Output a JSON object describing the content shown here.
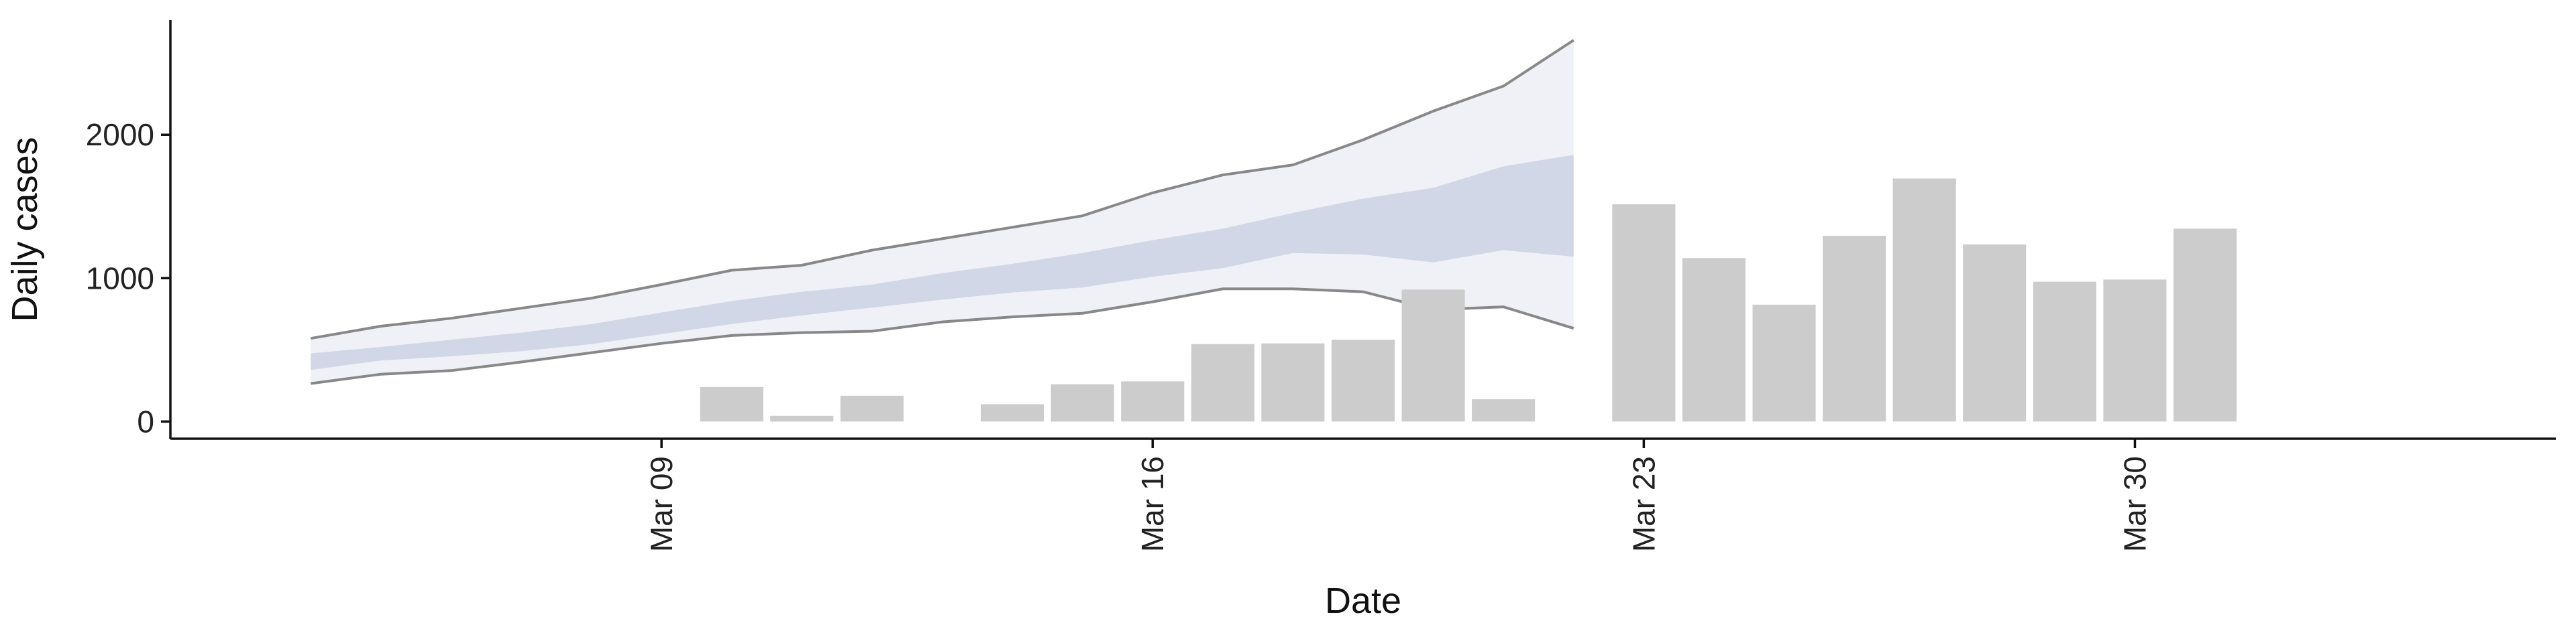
{
  "chart_data": {
    "type": "bar",
    "xlabel": "Date",
    "ylabel": "Daily cases",
    "xlim": [
      "2020-03-02",
      "2020-04-05"
    ],
    "ylim": [
      -120,
      2800
    ],
    "y_ticks": [
      0,
      1000,
      2000
    ],
    "x_ticks": [
      {
        "date": "2020-03-09",
        "label": "Mar 09"
      },
      {
        "date": "2020-03-16",
        "label": "Mar 16"
      },
      {
        "date": "2020-03-23",
        "label": "Mar 23"
      },
      {
        "date": "2020-03-30",
        "label": "Mar 30"
      }
    ],
    "grid": false,
    "legend": "none",
    "colors": {
      "bar": "#cccccc",
      "band_inner": "#c7cde0",
      "band_outer": "#eceef5",
      "band_outline": "#888888",
      "axis": "#111111"
    },
    "cases": {
      "name": "",
      "dates": [
        "2020-03-10",
        "2020-03-11",
        "2020-03-12",
        "2020-03-14",
        "2020-03-15",
        "2020-03-16",
        "2020-03-17",
        "2020-03-18",
        "2020-03-19",
        "2020-03-20",
        "2020-03-21",
        "2020-03-23",
        "2020-03-24",
        "2020-03-25",
        "2020-03-26",
        "2020-03-27",
        "2020-03-28",
        "2020-03-29",
        "2020-03-30",
        "2020-03-31"
      ],
      "values": [
        240,
        40,
        180,
        120,
        260,
        280,
        540,
        545,
        570,
        920,
        155,
        1515,
        1140,
        815,
        1295,
        1695,
        1235,
        975,
        990,
        1345
      ]
    },
    "estimate": {
      "name": "",
      "dates": [
        "2020-03-04",
        "2020-03-05",
        "2020-03-06",
        "2020-03-07",
        "2020-03-08",
        "2020-03-09",
        "2020-03-10",
        "2020-03-11",
        "2020-03-12",
        "2020-03-13",
        "2020-03-14",
        "2020-03-15",
        "2020-03-16",
        "2020-03-17",
        "2020-03-18",
        "2020-03-19",
        "2020-03-20",
        "2020-03-21",
        "2020-03-22"
      ],
      "lower90": [
        265,
        330,
        355,
        415,
        480,
        545,
        600,
        620,
        630,
        695,
        730,
        755,
        835,
        925,
        925,
        905,
        780,
        800,
        650
      ],
      "lower50": [
        360,
        425,
        455,
        490,
        540,
        610,
        680,
        740,
        795,
        850,
        900,
        935,
        1010,
        1070,
        1175,
        1165,
        1110,
        1195,
        1150
      ],
      "upper50": [
        475,
        520,
        570,
        620,
        680,
        760,
        840,
        905,
        955,
        1035,
        1100,
        1175,
        1265,
        1345,
        1455,
        1555,
        1630,
        1780,
        1860
      ],
      "upper90": [
        580,
        665,
        720,
        790,
        860,
        955,
        1055,
        1090,
        1195,
        1275,
        1355,
        1435,
        1595,
        1720,
        1790,
        1965,
        2165,
        2340,
        2660
      ]
    }
  }
}
